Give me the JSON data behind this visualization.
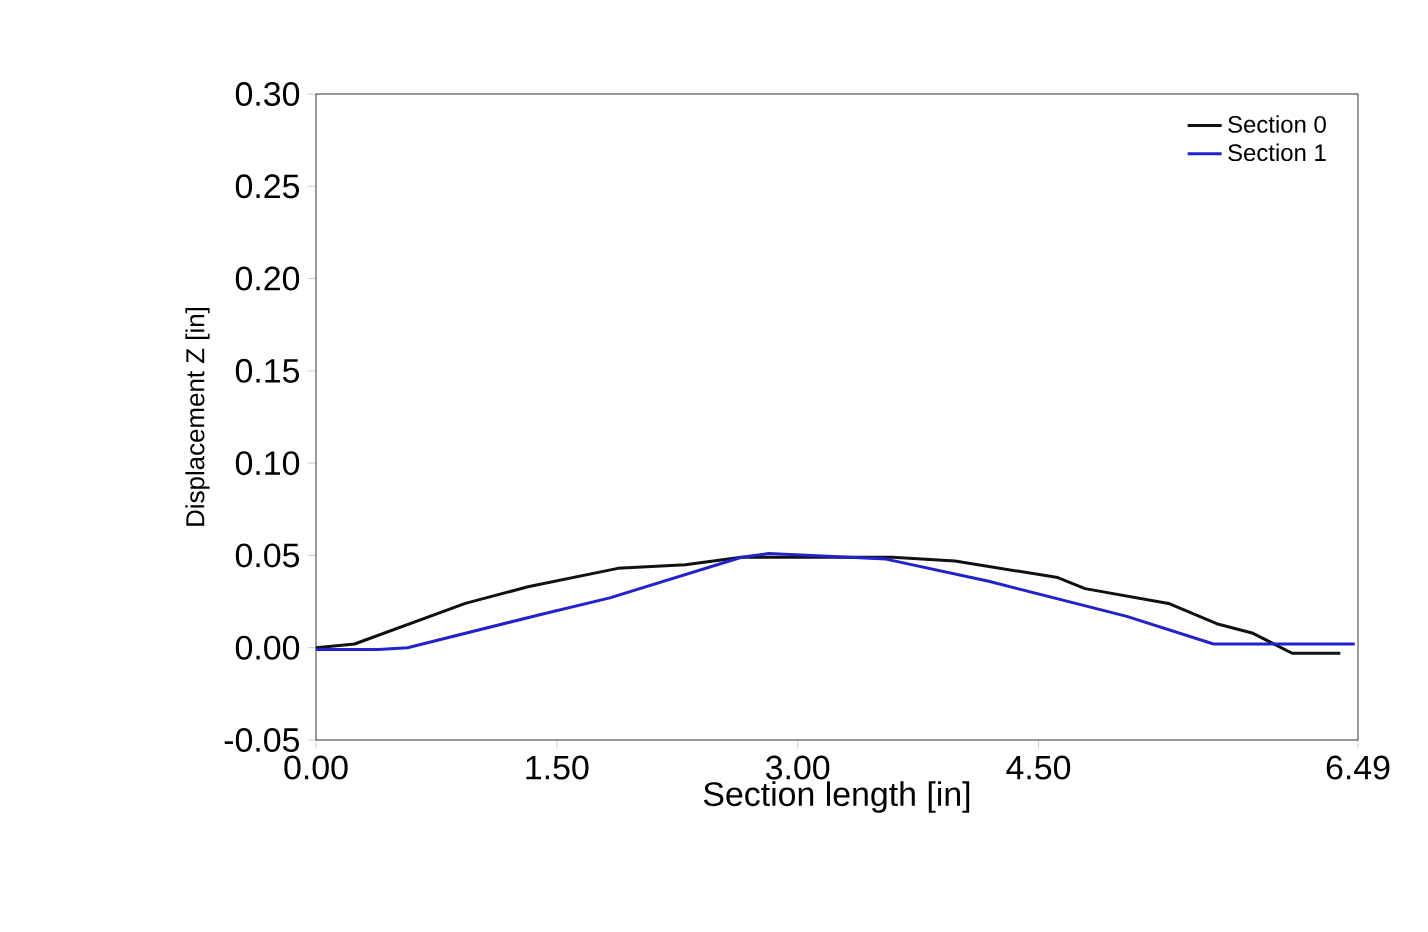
{
  "chart_data": {
    "type": "line",
    "xlabel": "Section length [in]",
    "ylabel": "Displacement Z [in]",
    "xlim": [
      0,
      6.49
    ],
    "ylim": [
      -0.05,
      0.3
    ],
    "xticks": [
      {
        "value": 0,
        "label": "0.00"
      },
      {
        "value": 1.5,
        "label": "1.50"
      },
      {
        "value": 3,
        "label": "3.00"
      },
      {
        "value": 4.5,
        "label": "4.50"
      },
      {
        "value": 6.49,
        "label": "6.49"
      }
    ],
    "yticks": [
      {
        "value": -0.05,
        "label": "-0.05"
      },
      {
        "value": 0,
        "label": "0.00"
      },
      {
        "value": 0.05,
        "label": "0.05"
      },
      {
        "value": 0.1,
        "label": "0.10"
      },
      {
        "value": 0.15,
        "label": "0.15"
      },
      {
        "value": 0.2,
        "label": "0.20"
      },
      {
        "value": 0.25,
        "label": "0.25"
      },
      {
        "value": 0.3,
        "label": "0.30"
      }
    ],
    "legend": "top right",
    "grid": false,
    "series": [
      {
        "name": "Section 0",
        "color": "#111111",
        "x": [
          0,
          0.24,
          0.93,
          1.32,
          1.88,
          2.3,
          2.65,
          3.59,
          3.98,
          4.62,
          4.79,
          5.31,
          5.61,
          5.83,
          6.08,
          6.38
        ],
        "values": [
          0,
          0.002,
          0.024,
          0.033,
          0.043,
          0.045,
          0.049,
          0.049,
          0.047,
          0.038,
          0.032,
          0.024,
          0.013,
          0.008,
          -0.003,
          -0.003
        ]
      },
      {
        "name": "Section 1",
        "color": "#2222cc",
        "x": [
          0,
          0.39,
          0.57,
          1.4,
          1.83,
          2.65,
          2.82,
          3.55,
          4.19,
          5.05,
          5.59,
          6.47
        ],
        "values": [
          -0.001,
          -0.001,
          0,
          0.018,
          0.027,
          0.049,
          0.051,
          0.048,
          0.036,
          0.017,
          0.002,
          0.002
        ]
      }
    ]
  }
}
